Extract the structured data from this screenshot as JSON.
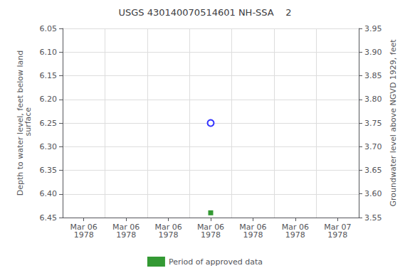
{
  "chart_data": {
    "type": "scatter",
    "title": "USGS 430140070514601 NH-SSA    2",
    "ylabel": "Depth to water level, feet below land\n surface",
    "y2label": "Groundwater level above NGVD 1929, feet",
    "categories": [
      "Mar 06\n1978",
      "Mar 06\n1978",
      "Mar 06\n1978",
      "Mar 06\n1978",
      "Mar 06\n1978",
      "Mar 06\n1978",
      "Mar 07\n1978"
    ],
    "series": [
      {
        "color": "blue",
        "marker": "circle",
        "values": [
          null,
          null,
          null,
          6.25,
          null,
          null,
          null
        ]
      },
      {
        "name": "Period of approved data",
        "color": "#008000",
        "marker": "square",
        "values": [
          null,
          null,
          null,
          6.44,
          null,
          null,
          null
        ]
      }
    ],
    "ylim": [
      6.45,
      6.05
    ],
    "yticks": [
      6.05,
      {
        "value": 6.1,
        "label": "6.10"
      },
      6.15,
      {
        "value": 6.2,
        "label": "6.20"
      },
      6.25,
      {
        "value": 6.3,
        "label": "6.30"
      },
      6.35,
      {
        "value": 6.4,
        "label": "6.40"
      },
      6.45
    ],
    "y2lim": [
      3.55,
      3.95
    ],
    "y2ticks": [
      3.95,
      {
        "value": 3.9,
        "label": "3.90"
      },
      3.85,
      {
        "value": 3.8,
        "label": "3.80"
      },
      3.75,
      {
        "value": 3.7,
        "label": "3.70"
      },
      3.65,
      {
        "value": 3.6,
        "label": "3.60"
      },
      3.55
    ],
    "grid": true,
    "legend": "bottom"
  }
}
